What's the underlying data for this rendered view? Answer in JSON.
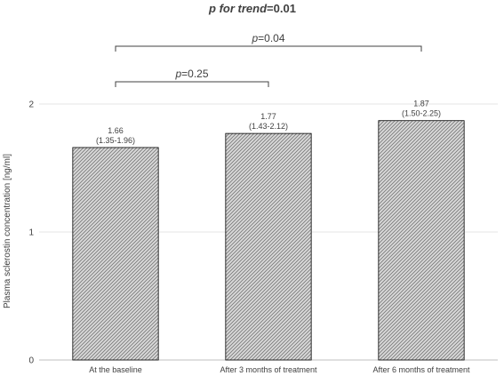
{
  "chart_data": {
    "type": "bar",
    "title": {
      "p_italic": "p for trend",
      "value": "=0.01"
    },
    "ylabel": "Plasma sclerostin concentration [ng/ml]",
    "xlabel": "",
    "ylim": [
      0,
      2
    ],
    "yticks": [
      0,
      1,
      2
    ],
    "grid": true,
    "categories": [
      "At the baseline",
      "After 3 months of treatment",
      "After 6 months of treatment"
    ],
    "values": [
      1.66,
      1.77,
      1.87
    ],
    "data_labels": [
      {
        "value": "1.66",
        "range": "(1.35-1.96)"
      },
      {
        "value": "1.77",
        "range": "(1.43-2.12)"
      },
      {
        "value": "1.87",
        "range": "(1.50-2.25)"
      }
    ],
    "comparisons": [
      {
        "from": 0,
        "to": 2,
        "p_italic": "p",
        "text": "=0.04"
      },
      {
        "from": 0,
        "to": 1,
        "p_italic": "p",
        "text": "=0.25"
      }
    ],
    "colors": {
      "bar_fill": "#d9d9d9",
      "bar_hatch": "#808080",
      "bar_stroke": "#000000",
      "grid": "#e6e6e6",
      "axis": "#bfbfbf",
      "text": "#404040"
    }
  }
}
